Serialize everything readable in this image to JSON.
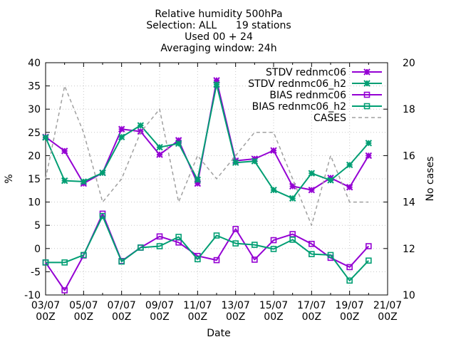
{
  "chart_data": {
    "type": "line",
    "title_lines": [
      "Relative humidity 500hPa",
      "Selection: ALL      19 stations",
      "Used 00 + 24",
      "Averaging window: 24h"
    ],
    "xlabel": "Date",
    "ylabel": "%",
    "y2label": "No cases",
    "xlim": [
      0,
      18
    ],
    "ylim": [
      -10,
      40
    ],
    "y2lim": [
      10,
      20
    ],
    "x_ticks": [
      {
        "x": 0,
        "line1": "03/07",
        "line2": "00Z"
      },
      {
        "x": 2,
        "line1": "05/07",
        "line2": "00Z"
      },
      {
        "x": 4,
        "line1": "07/07",
        "line2": "00Z"
      },
      {
        "x": 6,
        "line1": "09/07",
        "line2": "00Z"
      },
      {
        "x": 8,
        "line1": "11/07",
        "line2": "00Z"
      },
      {
        "x": 10,
        "line1": "13/07",
        "line2": "00Z"
      },
      {
        "x": 12,
        "line1": "15/07",
        "line2": "00Z"
      },
      {
        "x": 14,
        "line1": "17/07",
        "line2": "00Z"
      },
      {
        "x": 16,
        "line1": "19/07",
        "line2": "00Z"
      },
      {
        "x": 18,
        "line1": "21/07",
        "line2": "00Z"
      }
    ],
    "y_ticks": [
      -10,
      -5,
      0,
      5,
      10,
      15,
      20,
      25,
      30,
      35,
      40
    ],
    "y2_ticks": [
      10,
      12,
      14,
      16,
      18,
      20
    ],
    "legend_position": "top-right",
    "x": [
      0,
      1,
      2,
      3,
      4,
      5,
      6,
      7,
      8,
      9,
      10,
      11,
      12,
      13,
      14,
      15,
      16,
      17
    ],
    "series": [
      {
        "name": "STDV rednmc06",
        "color": "#9400d3",
        "marker": "star",
        "axis": "y",
        "values": [
          24.0,
          21.0,
          14.0,
          16.3,
          25.7,
          25.2,
          20.2,
          23.3,
          14.0,
          36.2,
          18.9,
          19.3,
          21.1,
          13.4,
          12.6,
          15.2,
          13.2,
          20.0
        ]
      },
      {
        "name": "STDV rednmc06_h2",
        "color": "#009e73",
        "marker": "star",
        "axis": "y",
        "values": [
          23.9,
          14.6,
          14.4,
          16.3,
          24.0,
          26.5,
          21.8,
          22.6,
          14.8,
          35.3,
          18.5,
          18.8,
          12.6,
          10.8,
          16.2,
          14.7,
          18.0,
          22.7
        ]
      },
      {
        "name": "BIAS rednmc06",
        "color": "#9400d3",
        "marker": "square",
        "axis": "y",
        "values": [
          -3.0,
          -9.0,
          -1.5,
          7.5,
          -2.7,
          0.2,
          2.6,
          1.3,
          -1.6,
          -2.5,
          4.2,
          -2.4,
          1.8,
          3.1,
          1.0,
          -2.0,
          -4.0,
          0.5
        ]
      },
      {
        "name": "BIAS rednmc06_h2",
        "color": "#009e73",
        "marker": "square",
        "axis": "y",
        "values": [
          -3.0,
          -3.0,
          -1.4,
          7.0,
          -2.8,
          0.2,
          0.5,
          2.5,
          -2.3,
          2.8,
          1.1,
          0.8,
          -0.1,
          1.9,
          -1.2,
          -1.4,
          -6.9,
          -2.6
        ]
      },
      {
        "name": "CASES",
        "color": "#a0a0a0",
        "marker": "none",
        "dashed": true,
        "axis": "y2",
        "values": [
          15,
          19,
          17,
          14,
          15,
          17,
          18,
          14,
          16,
          15,
          16,
          17,
          17,
          15,
          13,
          16,
          14,
          14
        ]
      }
    ]
  }
}
